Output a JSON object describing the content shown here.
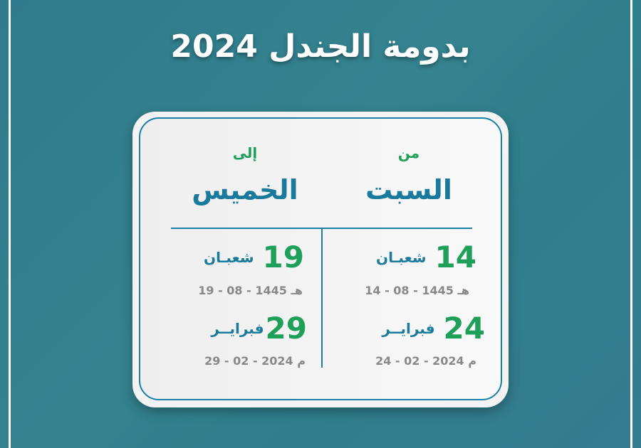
{
  "title_line2": "بدومة الجندل 2024",
  "from": {
    "label": "من",
    "day": "السبت",
    "hijri_day": "14",
    "hijri_month": "شعبـان",
    "hijri_date": "14 - 08 - 1445 هـ",
    "greg_day": "24",
    "greg_month": "فبرايــر",
    "greg_date": "24 - 02 - 2024 م"
  },
  "to": {
    "label": "إلى",
    "day": "الخميس",
    "hijri_day": "19",
    "hijri_month": "شعبـان",
    "hijri_date": "19 - 08 - 1445 هـ",
    "greg_day": "29",
    "greg_month": "فبرايــر",
    "greg_date": "29 - 02 - 2024 م"
  },
  "colors": {
    "accent_green": "#1fa05a",
    "accent_blue": "#1a7a9c",
    "background": "#33808f"
  }
}
